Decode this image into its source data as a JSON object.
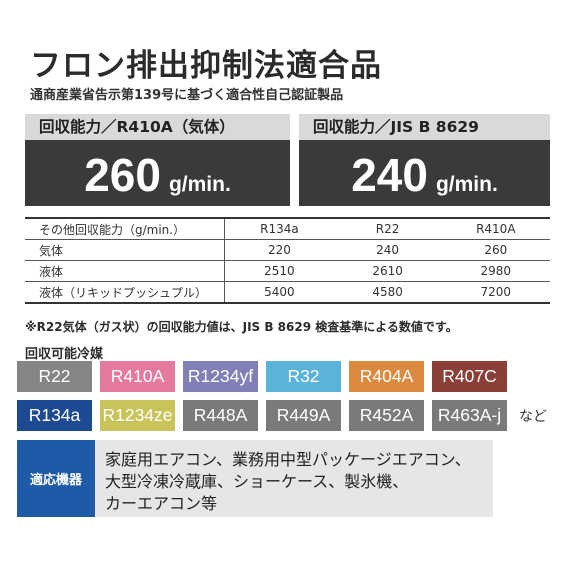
{
  "title": "フロン排出抑制法適合品",
  "subtitle": "通商産業省告示第139号に基づく適合性自己認証製品",
  "capacity": [
    {
      "label": "回収能力／R410A（気体）",
      "value": "260",
      "unit": "g/min."
    },
    {
      "label": "回収能力／JIS B 8629",
      "value": "240",
      "unit": "g/min."
    }
  ],
  "other_table": {
    "header": [
      "その他回収能力（g/min.）",
      "R134a",
      "R22",
      "R410A"
    ],
    "rows": [
      [
        "気体",
        "220",
        "240",
        "260"
      ],
      [
        "液体",
        "2510",
        "2610",
        "2980"
      ],
      [
        "液体（リキッドプッシュプル）",
        "5400",
        "4580",
        "7200"
      ]
    ]
  },
  "note": "※R22気体（ガス状）の回収能力値は、JIS B 8629 検査基準による数値です。",
  "refrigerants": {
    "heading": "回収可能冷媒",
    "row1": [
      {
        "name": "R22",
        "color": "#858585"
      },
      {
        "name": "R410A",
        "color": "#e6799e"
      },
      {
        "name": "R1234yf",
        "color": "#8180b6"
      },
      {
        "name": "R32",
        "color": "#5bb3d9"
      },
      {
        "name": "R404A",
        "color": "#db8a3f"
      },
      {
        "name": "R407C",
        "color": "#8a4038"
      }
    ],
    "row2": [
      {
        "name": "R134a",
        "color": "#1d4a93"
      },
      {
        "name": "R1234ze",
        "color": "#c9c45a"
      },
      {
        "name": "R448A",
        "color": "#7a7a7a"
      },
      {
        "name": "R449A",
        "color": "#7a7a7a"
      },
      {
        "name": "R452A",
        "color": "#7a7a7a"
      },
      {
        "name": "R463A-j",
        "color": "#7a7a7a"
      }
    ],
    "suffix": "など"
  },
  "applicable": {
    "label": "適応機器",
    "lines": [
      "家庭用エアコン、業務用中型パッケージエアコン、",
      "大型冷凍冷蔵庫、ショーケース、製氷機、",
      "カーエアコン等"
    ]
  }
}
